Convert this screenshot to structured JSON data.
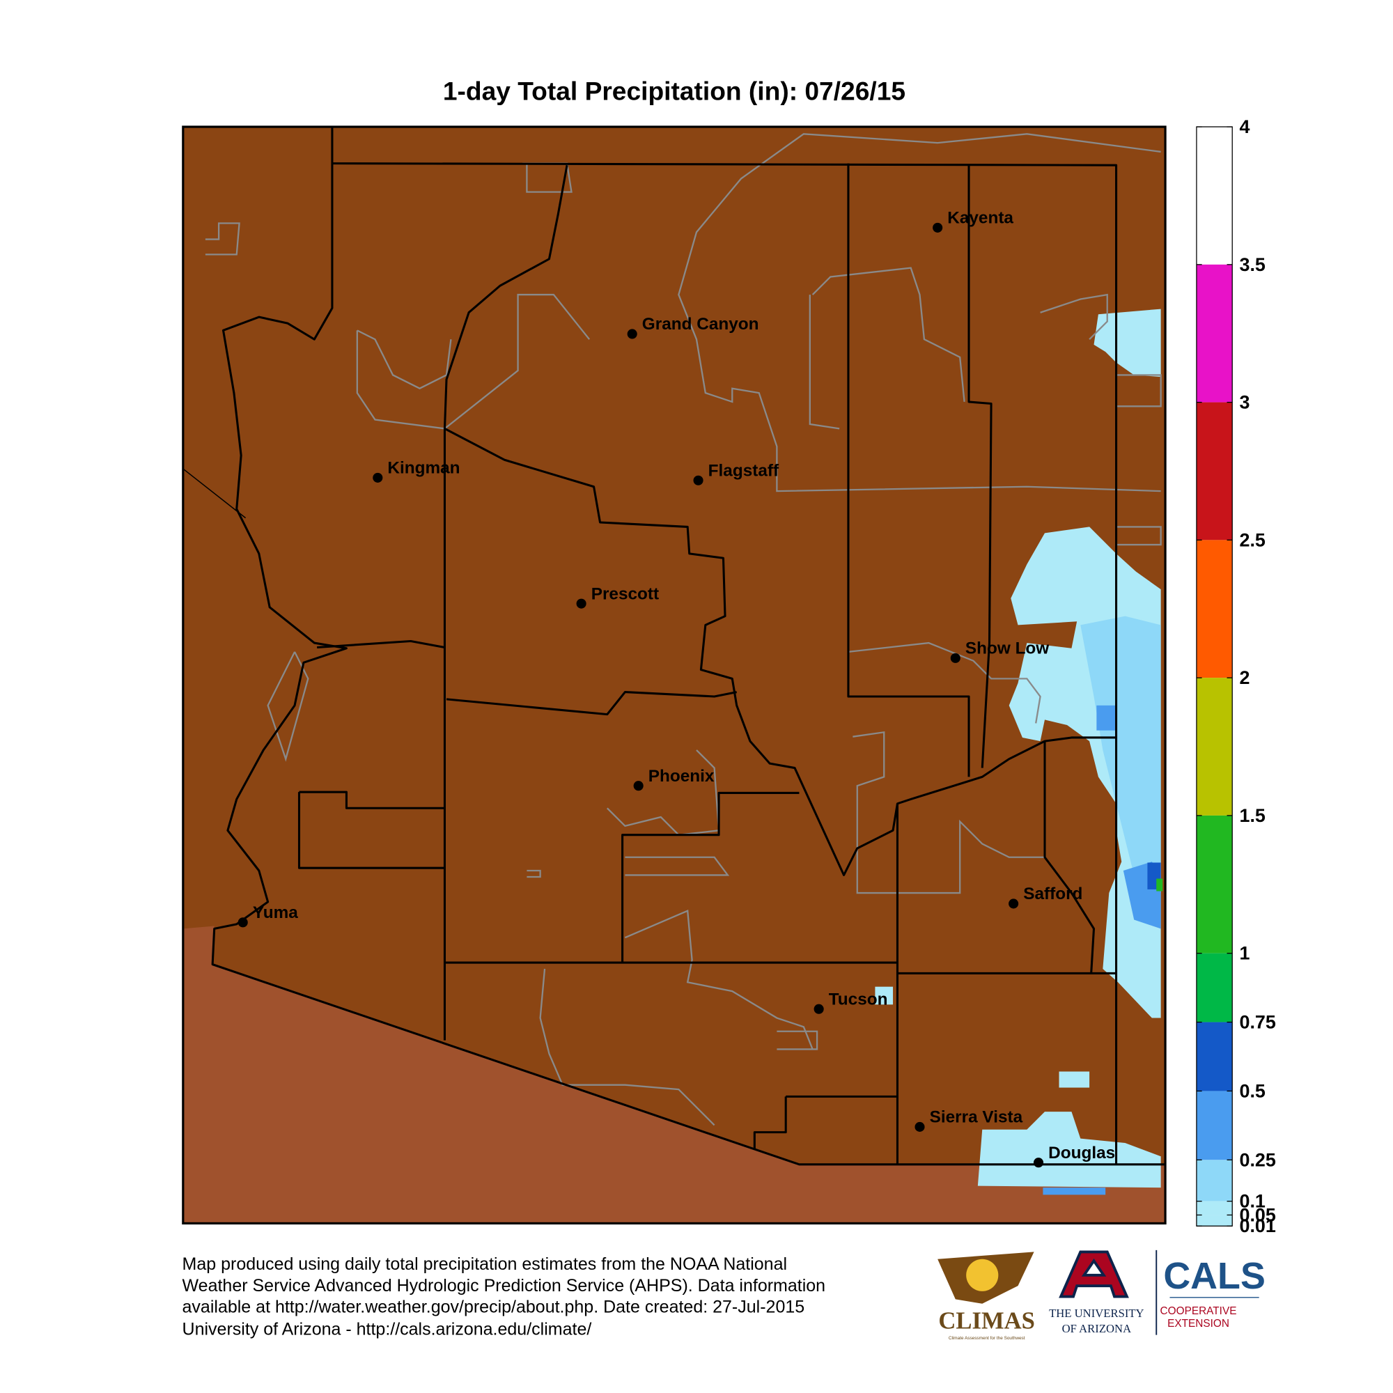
{
  "map": {
    "title": "1-day Total Precipitation (in): 07/26/15",
    "cities": [
      "Kayenta",
      "Grand Canyon",
      "Kingman",
      "Flagstaff",
      "Prescott",
      "Show Low",
      "Phoenix",
      "Safford",
      "Yuma",
      "Tucson",
      "Sierra Vista",
      "Douglas"
    ],
    "legend": {
      "lim": [
        0.01,
        4
      ],
      "ticks": [
        4,
        3.5,
        3,
        2.5,
        2,
        1.5,
        1,
        0.75,
        0.5,
        0.25,
        0.1,
        0.05,
        0.01
      ],
      "colors": [
        "#ffffff",
        "#e812c8",
        "#c8141a",
        "#ff5a00",
        "#b8c200",
        "#21b821",
        "#00b847",
        "#1459c8",
        "#4a9cef",
        "#8ed8f8",
        "#aeeaf8",
        "#aeeaf8"
      ]
    }
  },
  "footer": {
    "lines": [
      "Map produced using daily total precipitation estimates from the NOAA National",
      "Weather Service Advanced Hydrologic Prediction Service (AHPS). Data information",
      "available at http://water.weather.gov/precip/about.php. Date created: 27-Jul-2015",
      "University of Arizona - http://cals.arizona.edu/climate/"
    ]
  },
  "logos": {
    "climas": "CLIMAS",
    "climas_sub": "Climate Assessment for the Southwest",
    "ua": [
      "THE UNIVERSITY",
      "OF ARIZONA"
    ],
    "cals": "CALS",
    "cals_sub": [
      "COOPERATIVE",
      "EXTENSION"
    ]
  }
}
